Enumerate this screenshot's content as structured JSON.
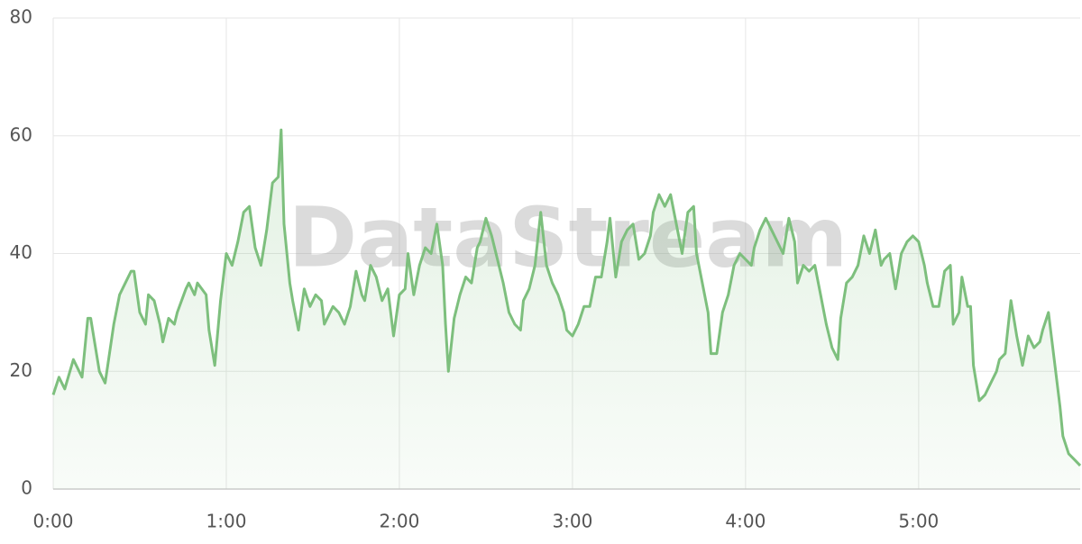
{
  "chart_data": {
    "type": "area",
    "watermark": "DataStream",
    "x": [
      0,
      2,
      4,
      7,
      10,
      12,
      13,
      16,
      18,
      21,
      23,
      25,
      27,
      28,
      30,
      32,
      33,
      35,
      37,
      38,
      40,
      42,
      43,
      46,
      47,
      49,
      50,
      53,
      54,
      56,
      58,
      60,
      62,
      64,
      66,
      68,
      70,
      72,
      74,
      76,
      78,
      79,
      80,
      82,
      83,
      85,
      87,
      89,
      91,
      93,
      94,
      97,
      99,
      101,
      103,
      105,
      107,
      108,
      110,
      112,
      114,
      116,
      118,
      120,
      122,
      123,
      125,
      127,
      129,
      131,
      133,
      135,
      136,
      137,
      139,
      141,
      143,
      145,
      147,
      148,
      150,
      152,
      154,
      156,
      158,
      160,
      162,
      163,
      165,
      167,
      169,
      171,
      173,
      175,
      177,
      178,
      180,
      182,
      184,
      186,
      188,
      190,
      192,
      193,
      195,
      197,
      199,
      201,
      203,
      205,
      207,
      208,
      210,
      212,
      214,
      216,
      218,
      220,
      222,
      223,
      225,
      227,
      228,
      230,
      232,
      234,
      236,
      238,
      240,
      242,
      243,
      245,
      247,
      249,
      251,
      253,
      255,
      257,
      258,
      260,
      262,
      264,
      266,
      268,
      270,
      272,
      273,
      275,
      277,
      279,
      281,
      283,
      285,
      287,
      288,
      290,
      292,
      294,
      296,
      298,
      300,
      302,
      303,
      305,
      307,
      309,
      311,
      312,
      314,
      315,
      317,
      318,
      319,
      321,
      323,
      325,
      327,
      328,
      330,
      332,
      334,
      336,
      338,
      340,
      342,
      343,
      345,
      347,
      349,
      350,
      352,
      354,
      356
    ],
    "series": [
      {
        "color": "#7dbf7d",
        "values": [
          16,
          19,
          17,
          22,
          19,
          29,
          29,
          20,
          18,
          28,
          33,
          35,
          37,
          37,
          30,
          28,
          33,
          32,
          28,
          25,
          29,
          28,
          30,
          34,
          35,
          33,
          35,
          33,
          27,
          21,
          32,
          40,
          38,
          42,
          47,
          48,
          41,
          38,
          44,
          52,
          53,
          61,
          45,
          35,
          32,
          27,
          34,
          31,
          33,
          32,
          28,
          31,
          30,
          28,
          31,
          37,
          33,
          32,
          38,
          36,
          32,
          34,
          26,
          33,
          34,
          40,
          33,
          38,
          41,
          40,
          45,
          38,
          28,
          20,
          29,
          33,
          36,
          35,
          41,
          42,
          46,
          43,
          39,
          35,
          30,
          28,
          27,
          32,
          34,
          38,
          47,
          38,
          35,
          33,
          30,
          27,
          26,
          28,
          31,
          31,
          36,
          36,
          42,
          46,
          36,
          42,
          44,
          45,
          39,
          40,
          43,
          47,
          50,
          48,
          50,
          45,
          40,
          47,
          48,
          40,
          35,
          30,
          23,
          23,
          30,
          33,
          38,
          40,
          39,
          38,
          41,
          44,
          46,
          44,
          42,
          40,
          46,
          42,
          35,
          38,
          37,
          38,
          33,
          28,
          24,
          22,
          29,
          35,
          36,
          38,
          43,
          40,
          44,
          38,
          39,
          40,
          34,
          40,
          42,
          43,
          42,
          38,
          35,
          31,
          31,
          37,
          38,
          28,
          30,
          36,
          31,
          31,
          21,
          15,
          16,
          18,
          20,
          22,
          23,
          32,
          26,
          21,
          26,
          24,
          25,
          27,
          30,
          22,
          14,
          9,
          6,
          5,
          4
        ]
      }
    ],
    "xlim": [
      0,
      356
    ],
    "ylim": [
      0,
      80
    ],
    "xticks": [
      {
        "value": 0,
        "label": "0:00"
      },
      {
        "value": 60,
        "label": "1:00"
      },
      {
        "value": 120,
        "label": "2:00"
      },
      {
        "value": 180,
        "label": "3:00"
      },
      {
        "value": 240,
        "label": "4:00"
      },
      {
        "value": 300,
        "label": "5:00"
      }
    ],
    "yticks": [
      0,
      20,
      40,
      60,
      80
    ],
    "grid": true
  }
}
